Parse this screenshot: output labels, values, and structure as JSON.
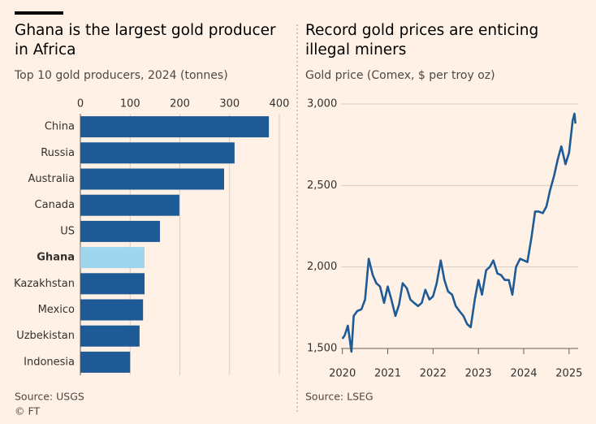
{
  "chart_data": [
    {
      "type": "hbar",
      "title": "Ghana is the largest gold producer in Africa",
      "subtitle": "Top 10 gold producers, 2024 (tonnes)",
      "source": "Source: USGS",
      "credit": "© FT",
      "categories": [
        "China",
        "Russia",
        "Australia",
        "Canada",
        "US",
        "Ghana",
        "Kazakhstan",
        "Mexico",
        "Uzbekistan",
        "Indonesia"
      ],
      "values": [
        379,
        310,
        289,
        199,
        160,
        129,
        129,
        126,
        119,
        100
      ],
      "colors": [
        "#1e5a96",
        "#1e5a96",
        "#1e5a96",
        "#1e5a96",
        "#1e5a96",
        "#9dd6ee",
        "#1e5a96",
        "#1e5a96",
        "#1e5a96",
        "#1e5a96"
      ],
      "xlim": [
        0,
        400
      ],
      "xticks": [
        0,
        100,
        200,
        300,
        400
      ],
      "grid": true
    },
    {
      "type": "line",
      "title": "Record gold prices are enticing illegal miners",
      "subtitle": "Gold price (Comex, $ per troy oz)",
      "source": "Source: LSEG",
      "x": [
        2020.0,
        2020.05,
        2020.12,
        2020.2,
        2020.25,
        2020.33,
        2020.42,
        2020.5,
        2020.58,
        2020.67,
        2020.75,
        2020.83,
        2020.92,
        2021.0,
        2021.08,
        2021.17,
        2021.25,
        2021.33,
        2021.42,
        2021.5,
        2021.58,
        2021.67,
        2021.75,
        2021.83,
        2021.92,
        2022.0,
        2022.08,
        2022.17,
        2022.25,
        2022.33,
        2022.42,
        2022.5,
        2022.58,
        2022.67,
        2022.75,
        2022.83,
        2022.92,
        2023.0,
        2023.08,
        2023.17,
        2023.25,
        2023.33,
        2023.42,
        2023.5,
        2023.58,
        2023.67,
        2023.75,
        2023.83,
        2023.92,
        2024.0,
        2024.08,
        2024.17,
        2024.25,
        2024.33,
        2024.42,
        2024.5,
        2024.58,
        2024.67,
        2024.75,
        2024.83,
        2024.92,
        2025.0,
        2025.08,
        2025.12,
        2025.14
      ],
      "series": [
        {
          "name": "Gold price",
          "color": "#1e5a96",
          "values": [
            1560,
            1580,
            1640,
            1480,
            1700,
            1730,
            1740,
            1800,
            2050,
            1950,
            1900,
            1880,
            1780,
            1880,
            1800,
            1700,
            1770,
            1900,
            1870,
            1800,
            1780,
            1760,
            1780,
            1860,
            1800,
            1820,
            1900,
            2040,
            1920,
            1850,
            1830,
            1760,
            1730,
            1700,
            1650,
            1630,
            1800,
            1920,
            1830,
            1980,
            2000,
            2040,
            1960,
            1950,
            1920,
            1920,
            1830,
            2000,
            2050,
            2040,
            2030,
            2180,
            2340,
            2340,
            2330,
            2370,
            2470,
            2560,
            2660,
            2740,
            2630,
            2700,
            2900,
            2940,
            2880
          ]
        }
      ],
      "xlim": [
        2019.97,
        2025.2
      ],
      "xticks": [
        2020,
        2021,
        2022,
        2023,
        2024,
        2025
      ],
      "ylim": [
        1500,
        3000
      ],
      "yticks": [
        {
          "value": 1500,
          "label": "1,500"
        },
        {
          "value": 2000,
          "label": "2,000"
        },
        {
          "value": 2500,
          "label": "2,500"
        },
        {
          "value": 3000,
          "label": "3,000"
        }
      ],
      "grid": true
    }
  ]
}
